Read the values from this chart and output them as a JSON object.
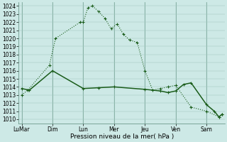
{
  "background_color": "#cde9e6",
  "line_color": "#1a5c1a",
  "grid_color": "#a0c8c0",
  "vline_color": "#5a8a7a",
  "xlabel": "Pression niveau de la mer( hPa )",
  "ylim": [
    1009.5,
    1024.5
  ],
  "ytick_min": 1010,
  "ytick_max": 1024,
  "day_labels": [
    "LuMar",
    "Dim",
    "Lun",
    "Mer",
    "Jeu",
    "Ven",
    "Sam"
  ],
  "day_x": [
    0,
    2,
    4,
    6,
    8,
    10,
    12
  ],
  "xlim": [
    -0.2,
    13.2
  ],
  "line1_x": [
    0,
    0.4,
    1.8,
    2.2,
    3.8,
    4.0,
    4.3,
    4.6,
    5.0,
    5.4,
    5.8,
    6.2,
    6.6,
    7.0,
    7.5,
    8.0,
    8.5,
    9.0,
    9.5,
    10.0,
    11.0,
    12.0,
    12.8,
    13.0
  ],
  "line1_y": [
    1013,
    1013.6,
    1016.7,
    1020,
    1022,
    1022,
    1023.8,
    1024.0,
    1023.3,
    1022.5,
    1021.2,
    1021.8,
    1020.5,
    1019.8,
    1019.5,
    1016.0,
    1013.6,
    1013.8,
    1014.0,
    1014.2,
    1011.5,
    1011.0,
    1010.3,
    1010.6
  ],
  "line2_x": [
    0,
    0.5,
    2.0,
    4.0,
    5.0,
    6.0,
    8.0,
    9.0,
    9.5,
    10.0,
    10.5,
    11.0,
    12.0,
    12.5,
    12.8,
    13.0
  ],
  "line2_y": [
    1013.8,
    1013.6,
    1016.0,
    1013.8,
    1013.9,
    1014.0,
    1013.7,
    1013.5,
    1013.3,
    1013.5,
    1014.3,
    1014.5,
    1011.8,
    1011.0,
    1010.3,
    1010.6
  ],
  "line1_lw": 0.8,
  "line2_lw": 1.1,
  "marker_size": 3,
  "marker_lw": 0.8,
  "tick_fontsize": 5.5,
  "xlabel_fontsize": 6.5
}
